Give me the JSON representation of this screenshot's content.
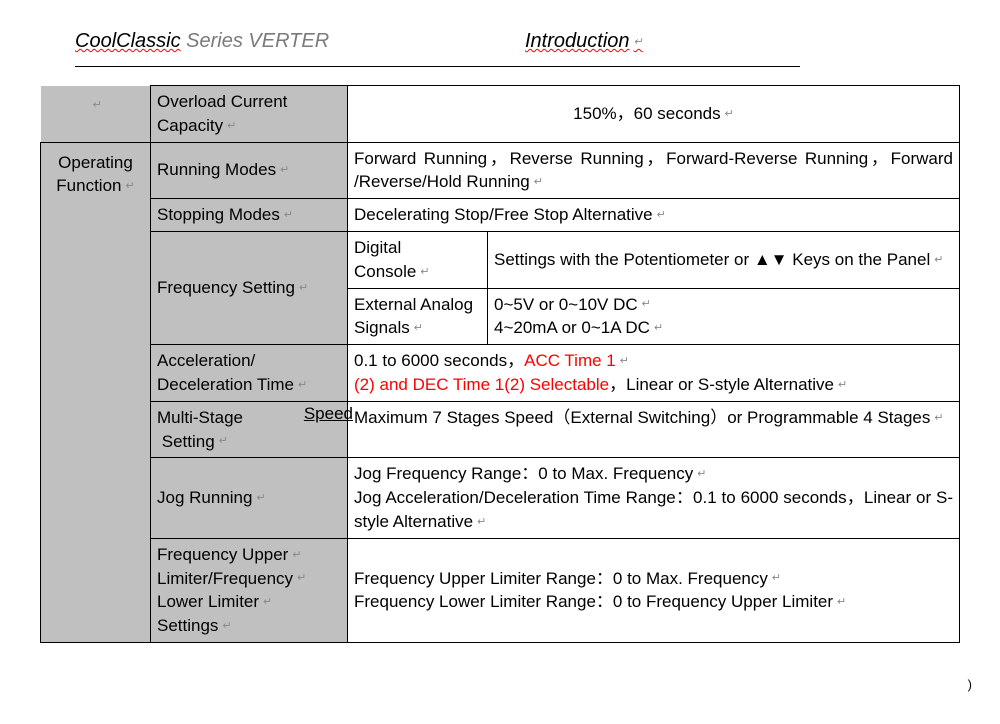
{
  "header": {
    "brand_underlined": "CoolClassic",
    "brand_rest": " Series VERTER",
    "section": "Introduction"
  },
  "table": {
    "category": "Operating Function",
    "rows": {
      "overload_label": "Overload Current Capacity",
      "overload_value": "150%，60 seconds",
      "running_modes_label": "Running Modes",
      "running_modes_value": "Forward Running，Reverse Running，Forward-Reverse Running，Forward /Reverse/Hold Running",
      "stopping_modes_label": "Stopping Modes",
      "stopping_modes_value": "Decelerating Stop/Free Stop Alternative",
      "freq_setting_label": "Frequency Setting",
      "freq_digital_label": "Digital Console",
      "freq_digital_value": "Settings with the Potentiometer or ▲▼ Keys on the Panel",
      "freq_ext_label": "External Analog Signals",
      "freq_ext_value1": "0~5V or 0~10V DC",
      "freq_ext_value2": "4~20mA or 0~1A DC",
      "accel_label": "Acceleration/ Deceleration Time",
      "accel_value_pre": "0.1 to 6000 seconds，",
      "accel_red1": "ACC Time 1",
      "accel_red2": "(2) and DEC Time 1(2) Selectable",
      "accel_value_post": "，Linear or S-style Alternative",
      "multi_label_main": "Multi-Stage",
      "multi_label_speed": "Speed",
      "multi_label_sub": "Setting",
      "multi_value": "Maximum 7 Stages Speed（External Switching）or Programmable 4 Stages",
      "jog_label": "Jog Running",
      "jog_value_l1": "Jog Frequency Range：0 to Max. Frequency",
      "jog_value_l2": "Jog Acceleration/Deceleration Time Range：0.1 to 6000 seconds，Linear or S-style Alternative",
      "limiter_label_l1": "Frequency Upper",
      "limiter_label_l2": "Limiter/Frequency",
      "limiter_label_l3": "Lower Limiter",
      "limiter_label_l4": "Settings",
      "limiter_value_l1": "Frequency Upper Limiter Range：0 to Max. Frequency",
      "limiter_value_l2": "Frequency Lower Limiter Range：0 to Frequency Upper Limiter"
    }
  },
  "footer_mark": ")",
  "colors": {
    "header_gray": "#c0c0c0",
    "red": "#ff0000",
    "wavy": "#ff0000",
    "text": "#000000",
    "bg": "#ffffff"
  }
}
